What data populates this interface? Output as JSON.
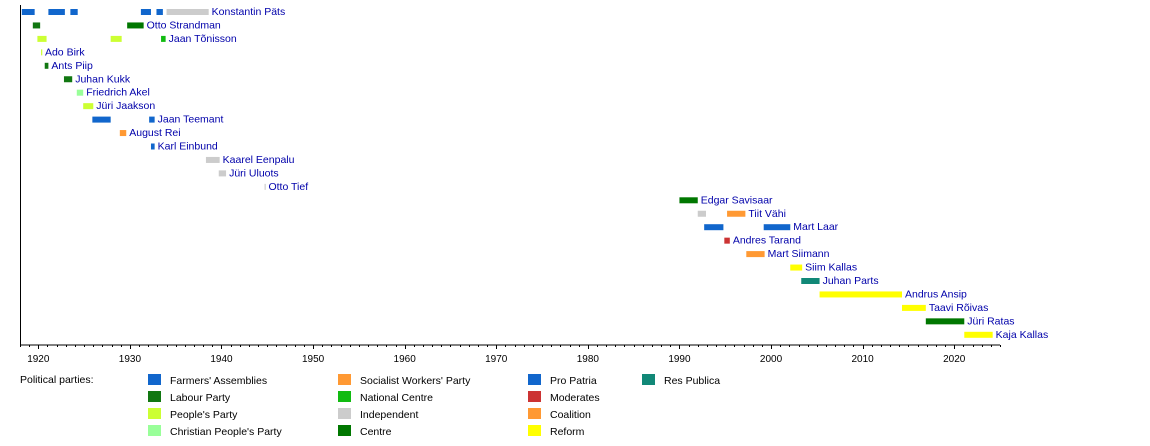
{
  "chart_data": {
    "type": "bar",
    "subtype": "timeline",
    "xlim": [
      1918,
      2025
    ],
    "x_ticks": [
      1920,
      1930,
      1940,
      1950,
      1960,
      1970,
      1980,
      1990,
      2000,
      2010,
      2020
    ],
    "legend": {
      "title": "Political parties:",
      "placement": "bottom",
      "parties": [
        {
          "name": "Farmers' Assemblies",
          "color": "#1166cc"
        },
        {
          "name": "Labour Party",
          "color": "#117711"
        },
        {
          "name": "People's Party",
          "color": "#ccff33"
        },
        {
          "name": "Christian People's Party",
          "color": "#99ff99"
        },
        {
          "name": "Socialist Workers' Party",
          "color": "#ff9933"
        },
        {
          "name": "National Centre",
          "color": "#11bb11"
        },
        {
          "name": "Independent",
          "color": "#cccccc"
        },
        {
          "name": "Centre",
          "color": "#007700"
        },
        {
          "name": "Pro Patria",
          "color": "#1166cc"
        },
        {
          "name": "Moderates",
          "color": "#cc3333"
        },
        {
          "name": "Coalition",
          "color": "#ff9933"
        },
        {
          "name": "Reform",
          "color": "#ffff00"
        },
        {
          "name": "Res Publica",
          "color": "#118877"
        }
      ]
    },
    "rows": [
      {
        "name": "Konstantin Päts",
        "terms": [
          {
            "start": 1918.2,
            "end": 1919.6,
            "color": "#1166cc"
          },
          {
            "start": 1921.1,
            "end": 1922.9,
            "color": "#1166cc"
          },
          {
            "start": 1923.5,
            "end": 1924.3,
            "color": "#1166cc"
          },
          {
            "start": 1931.2,
            "end": 1932.3,
            "color": "#1166cc"
          },
          {
            "start": 1932.9,
            "end": 1933.6,
            "color": "#1166cc"
          },
          {
            "start": 1934.0,
            "end": 1938.6,
            "color": "#cccccc"
          }
        ]
      },
      {
        "name": "Otto Strandman",
        "terms": [
          {
            "start": 1919.4,
            "end": 1920.2,
            "color": "#117711"
          },
          {
            "start": 1929.7,
            "end": 1931.5,
            "color": "#007700"
          }
        ]
      },
      {
        "name": "Jaan Tõnisson",
        "terms": [
          {
            "start": 1919.9,
            "end": 1920.9,
            "color": "#ccff33"
          },
          {
            "start": 1927.9,
            "end": 1929.1,
            "color": "#ccff33"
          },
          {
            "start": 1933.4,
            "end": 1933.9,
            "color": "#11bb11"
          }
        ]
      },
      {
        "name": "Ado Birk",
        "terms": [
          {
            "start": 1920.3,
            "end": 1920.4,
            "color": "#ccff33"
          }
        ]
      },
      {
        "name": "Ants Piip",
        "terms": [
          {
            "start": 1920.7,
            "end": 1921.1,
            "color": "#117711"
          }
        ]
      },
      {
        "name": "Juhan Kukk",
        "terms": [
          {
            "start": 1922.8,
            "end": 1923.7,
            "color": "#117711"
          }
        ]
      },
      {
        "name": "Friedrich Akel",
        "terms": [
          {
            "start": 1924.2,
            "end": 1924.9,
            "color": "#99ff99"
          }
        ]
      },
      {
        "name": "Jüri Jaakson",
        "terms": [
          {
            "start": 1924.9,
            "end": 1926.0,
            "color": "#ccff33"
          }
        ]
      },
      {
        "name": "Jaan Teemant",
        "terms": [
          {
            "start": 1925.9,
            "end": 1927.9,
            "color": "#1166cc"
          },
          {
            "start": 1932.1,
            "end": 1932.7,
            "color": "#1166cc"
          }
        ]
      },
      {
        "name": "August Rei",
        "terms": [
          {
            "start": 1928.9,
            "end": 1929.6,
            "color": "#ff9933"
          }
        ]
      },
      {
        "name": "Karl Einbund",
        "terms": [
          {
            "start": 1932.3,
            "end": 1932.7,
            "color": "#1166cc"
          }
        ]
      },
      {
        "name": "Kaarel Eenpalu",
        "terms": [
          {
            "start": 1938.3,
            "end": 1939.8,
            "color": "#cccccc"
          }
        ]
      },
      {
        "name": "Jüri Uluots",
        "terms": [
          {
            "start": 1939.7,
            "end": 1940.5,
            "color": "#cccccc"
          }
        ]
      },
      {
        "name": "Otto Tief",
        "terms": [
          {
            "start": 1944.7,
            "end": 1944.8,
            "color": "#cccccc"
          }
        ]
      },
      {
        "name": "Edgar Savisaar",
        "terms": [
          {
            "start": 1990.0,
            "end": 1992.0,
            "color": "#007700"
          }
        ]
      },
      {
        "name": "Tiit Vähi",
        "terms": [
          {
            "start": 1992.0,
            "end": 1992.9,
            "color": "#cccccc"
          },
          {
            "start": 1995.2,
            "end": 1997.2,
            "color": "#ff9933"
          }
        ]
      },
      {
        "name": "Mart Laar",
        "terms": [
          {
            "start": 1992.7,
            "end": 1994.8,
            "color": "#1166cc"
          },
          {
            "start": 1999.2,
            "end": 2002.1,
            "color": "#1166cc"
          }
        ]
      },
      {
        "name": "Andres Tarand",
        "terms": [
          {
            "start": 1994.9,
            "end": 1995.5,
            "color": "#cc3333"
          }
        ]
      },
      {
        "name": "Mart Siimann",
        "terms": [
          {
            "start": 1997.3,
            "end": 1999.3,
            "color": "#ff9933"
          }
        ]
      },
      {
        "name": "Siim Kallas",
        "terms": [
          {
            "start": 2002.1,
            "end": 2003.4,
            "color": "#ffff00"
          }
        ]
      },
      {
        "name": "Juhan Parts",
        "terms": [
          {
            "start": 2003.3,
            "end": 2005.3,
            "color": "#118877"
          }
        ]
      },
      {
        "name": "Andrus Ansip",
        "terms": [
          {
            "start": 2005.3,
            "end": 2014.3,
            "color": "#ffff00"
          }
        ]
      },
      {
        "name": "Taavi Rõivas",
        "terms": [
          {
            "start": 2014.3,
            "end": 2016.9,
            "color": "#ffff00"
          }
        ]
      },
      {
        "name": "Jüri Ratas",
        "terms": [
          {
            "start": 2016.9,
            "end": 2021.1,
            "color": "#007700"
          }
        ]
      },
      {
        "name": "Kaja Kallas",
        "terms": [
          {
            "start": 2021.1,
            "end": 2024.2,
            "color": "#ffff00"
          }
        ]
      }
    ]
  }
}
